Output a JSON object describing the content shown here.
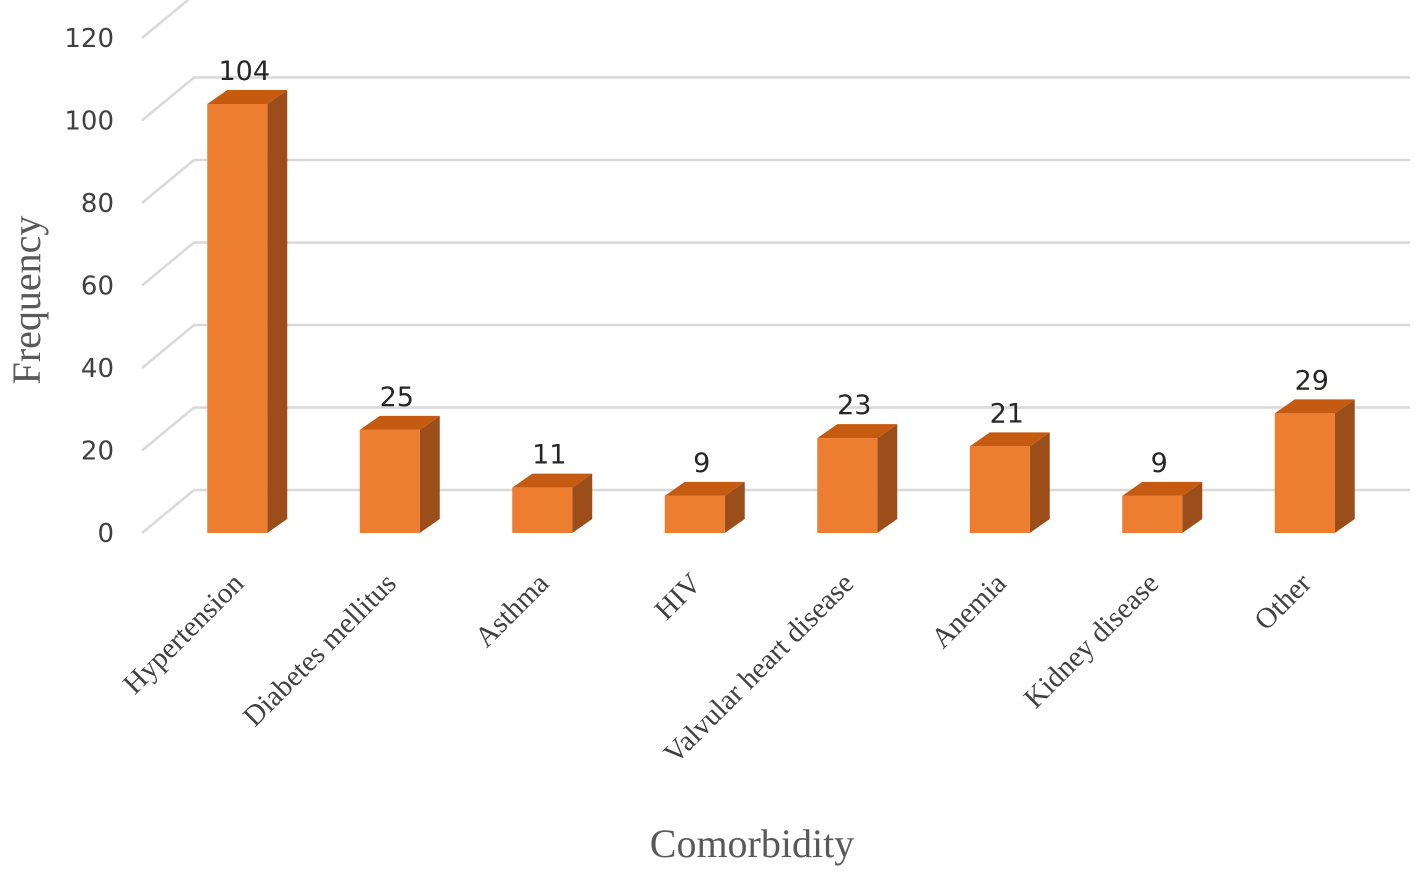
{
  "chart_data": {
    "type": "bar",
    "style": "3d-column",
    "categories": [
      "Hypertension",
      "Diabetes mellitus",
      "Asthma",
      "HIV",
      "Valvular heart disease",
      "Anemia",
      "Kidney disease",
      "Other"
    ],
    "values": [
      104,
      25,
      11,
      9,
      23,
      21,
      9,
      29
    ],
    "data_labels": [
      "104",
      "25",
      "11",
      "9",
      "23",
      "21",
      "9",
      "29"
    ],
    "title": "",
    "xlabel": "Comorbidity",
    "ylabel": "Frequency",
    "ylim": [
      0,
      120
    ],
    "yticks": [
      0,
      20,
      40,
      60,
      80,
      100,
      120
    ],
    "ytick_labels": [
      "0",
      "20",
      "40",
      "60",
      "80",
      "100",
      "120"
    ],
    "grid": true,
    "legend": "none",
    "colors": {
      "front": "#ed7d31",
      "side": "#9c4e1a",
      "top": "#c55a11",
      "grid": "#d9d9d9"
    }
  }
}
